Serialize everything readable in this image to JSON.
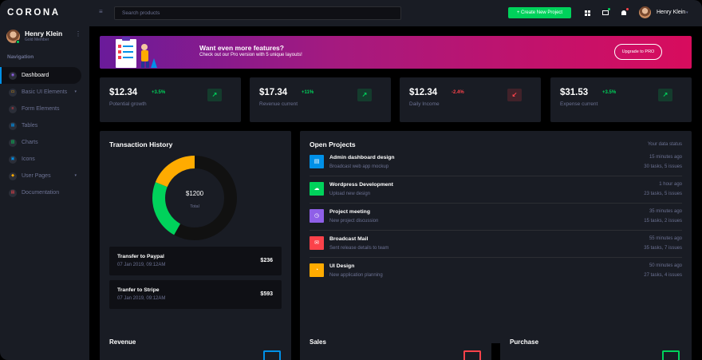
{
  "brand": "CORONA",
  "profile": {
    "name": "Henry Klein",
    "role": "Gold Member"
  },
  "nav": {
    "heading": "Navigation",
    "items": [
      {
        "label": "Dashboard",
        "icon": "speedometer-icon",
        "color": "#8f5fe8"
      },
      {
        "label": "Basic UI Elements",
        "icon": "laptop-icon",
        "color": "#ffab00"
      },
      {
        "label": "Form Elements",
        "icon": "playlist-icon",
        "color": "#fc424a"
      },
      {
        "label": "Tables",
        "icon": "table-icon",
        "color": "#0090e7"
      },
      {
        "label": "Charts",
        "icon": "chart-icon",
        "color": "#00d25b"
      },
      {
        "label": "Icons",
        "icon": "contacts-icon",
        "color": "#0090e7"
      },
      {
        "label": "User Pages",
        "icon": "security-icon",
        "color": "#ffab00"
      },
      {
        "label": "Documentation",
        "icon": "file-document-icon",
        "color": "#fc424a"
      }
    ]
  },
  "topbar": {
    "search_placeholder": "Search products",
    "create_label": "+ Create New Project",
    "user_name": "Henry Klein"
  },
  "promo": {
    "title": "Want even more features?",
    "subtitle": "Check out our Pro version with 5 unique layouts!",
    "button": "Upgrade to PRO"
  },
  "stats": [
    {
      "value": "$12.34",
      "pct": "+3.5%",
      "label": "Potential growth",
      "trend": "up"
    },
    {
      "value": "$17.34",
      "pct": "+11%",
      "label": "Revenue current",
      "trend": "up"
    },
    {
      "value": "$12.34",
      "pct": "-2.4%",
      "label": "Daily Income",
      "trend": "down"
    },
    {
      "value": "$31.53",
      "pct": "+3.5%",
      "label": "Expense current",
      "trend": "up"
    }
  ],
  "colors": {
    "success": "#00d25b",
    "danger": "#fc424a",
    "warning": "#ffab00",
    "primary": "#0090e7"
  },
  "transactions": {
    "title": "Transaction History",
    "total_amount": "$1200",
    "total_label": "Total",
    "donut": [
      {
        "color": "#111111",
        "fraction": 0.58
      },
      {
        "color": "#00d25b",
        "fraction": 0.23
      },
      {
        "color": "#ffab00",
        "fraction": 0.19
      }
    ],
    "items": [
      {
        "title": "Transfer to Paypal",
        "date": "07 Jan 2019, 09:12AM",
        "amount": "$236"
      },
      {
        "title": "Tranfer to Stripe",
        "date": "07 Jan 2019, 09:12AM",
        "amount": "$593"
      }
    ]
  },
  "projects": {
    "title": "Open Projects",
    "status_label": "Your data status",
    "items": [
      {
        "title": "Admin dashboard design",
        "subtitle": "Broadcast web app mockup",
        "time": "15 minutes ago",
        "tasks": "30 tasks, 5 issues",
        "color": "#0090e7",
        "icon": "file-icon",
        "glyph": "▤"
      },
      {
        "title": "Wordpress Development",
        "subtitle": "Upload new design",
        "time": "1 hour ago",
        "tasks": "23 tasks, 5 issues",
        "color": "#00d25b",
        "icon": "cloud-download-icon",
        "glyph": "☁"
      },
      {
        "title": "Project meeting",
        "subtitle": "New project discussion",
        "time": "35 minutes ago",
        "tasks": "15 tasks, 2 issues",
        "color": "#8f5fe8",
        "icon": "clock-icon",
        "glyph": "◷"
      },
      {
        "title": "Broadcast Mail",
        "subtitle": "Sent release details to team",
        "time": "55 minutes ago",
        "tasks": "35 tasks, 7 issues",
        "color": "#fc424a",
        "icon": "email-open-icon",
        "glyph": "✉"
      },
      {
        "title": "UI Design",
        "subtitle": "New application planning",
        "time": "50 minutes ago",
        "tasks": "27 tasks, 4 issues",
        "color": "#ffab00",
        "icon": "chart-pie-icon",
        "glyph": "◔"
      }
    ]
  },
  "bottom_cards": [
    {
      "title": "Revenue",
      "icon": "codepen-icon",
      "icon_color": "#0090e7"
    },
    {
      "title": "Sales",
      "icon": "wallet-travel-icon",
      "icon_color": "#fc424a"
    },
    {
      "title": "Purchase",
      "icon": "monitor-icon",
      "icon_color": "#00d25b"
    }
  ]
}
